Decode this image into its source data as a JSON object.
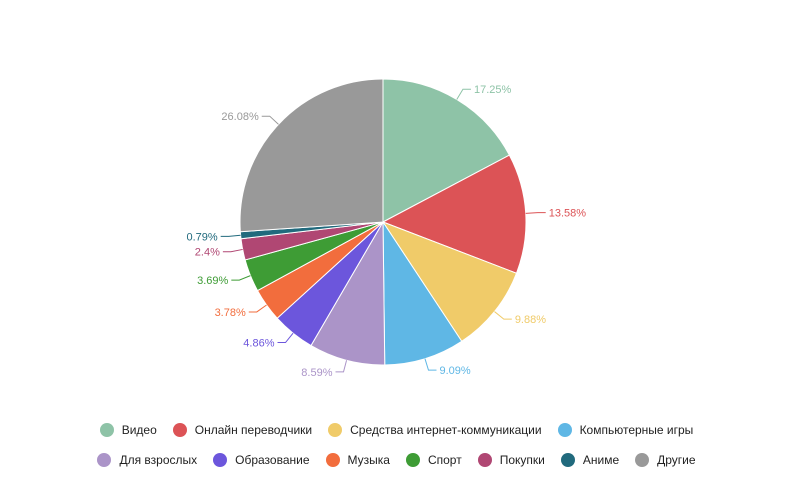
{
  "chart_data": {
    "type": "pie",
    "categories": [
      "Видео",
      "Онлайн переводчики",
      "Средства интернет-коммуникации",
      "Компьютерные игры",
      "Для взрослых",
      "Образование",
      "Музыка",
      "Спорт",
      "Покупки",
      "Аниме",
      "Другие"
    ],
    "values": [
      17.25,
      13.58,
      9.88,
      9.09,
      8.59,
      4.86,
      3.78,
      3.69,
      2.4,
      0.79,
      26.08
    ],
    "value_labels": [
      "17.25%",
      "13.58%",
      "9.88%",
      "9.09%",
      "8.59%",
      "4.86%",
      "3.78%",
      "3.69%",
      "2.4%",
      "0.79%",
      "26.08%"
    ],
    "colors": [
      "#8ec3a7",
      "#dc5356",
      "#f0cb69",
      "#5fb7e5",
      "#ab94c8",
      "#6c56dc",
      "#f26d3d",
      "#3e9c35",
      "#b04773",
      "#216a7d",
      "#999999"
    ],
    "legend_position": "bottom"
  }
}
